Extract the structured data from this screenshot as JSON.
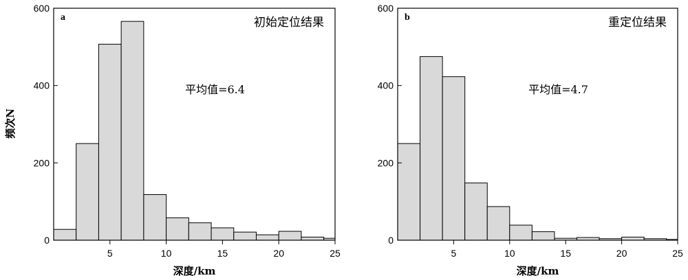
{
  "y_axis_label": "频次N",
  "chart_data": [
    {
      "type": "bar",
      "panel_letter": "a",
      "title": "初始定位结果",
      "annotation": "平均值=6.4",
      "xlabel": "深度/km",
      "ylabel": "频次N",
      "xlim": [
        0,
        25
      ],
      "ylim": [
        0,
        600
      ],
      "x_ticks": [
        "5",
        "10",
        "15",
        "20",
        "25"
      ],
      "y_ticks": [
        "0",
        "200",
        "400",
        "600"
      ],
      "bin_width": 2,
      "bin_starts": [
        0,
        2,
        4,
        6,
        8,
        10,
        12,
        14,
        16,
        18,
        20,
        22,
        24
      ],
      "values": [
        28,
        250,
        507,
        566,
        118,
        58,
        45,
        32,
        21,
        14,
        23,
        8,
        5
      ]
    },
    {
      "type": "bar",
      "panel_letter": "b",
      "title": "重定位结果",
      "annotation": "平均值=4.7",
      "xlabel": "深度/km",
      "ylabel": "",
      "xlim": [
        0,
        25
      ],
      "ylim": [
        0,
        600
      ],
      "x_ticks": [
        "5",
        "10",
        "15",
        "20",
        "25"
      ],
      "y_ticks": [
        "0",
        "200",
        "400",
        "600"
      ],
      "bin_width": 2,
      "bin_starts": [
        0,
        2,
        4,
        6,
        8,
        10,
        12,
        14,
        16,
        18,
        20,
        22,
        24
      ],
      "values": [
        250,
        475,
        423,
        148,
        87,
        39,
        22,
        5,
        7,
        4,
        8,
        4,
        2
      ]
    }
  ],
  "colors": {
    "bar_fill": "#d9d9d9",
    "bar_stroke": "#000000",
    "axis": "#000000"
  }
}
